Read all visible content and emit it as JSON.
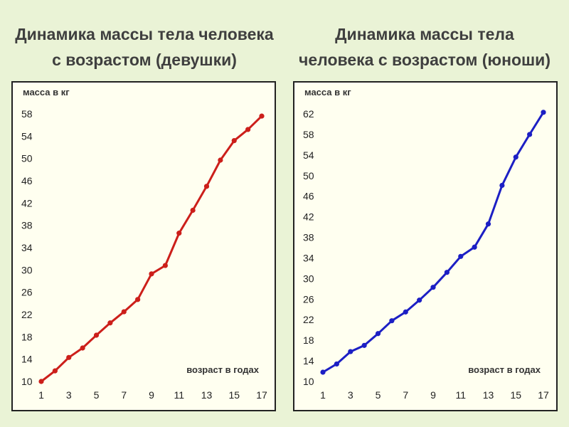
{
  "chart_data": [
    {
      "type": "line",
      "title_lines": [
        "Динамика массы тела человека",
        "с возрастом (девушки)"
      ],
      "ylabel": "масса в кг",
      "xlabel": "возраст в годах",
      "color": "#cc1f1a",
      "ylim": [
        10,
        58
      ],
      "xlim": [
        1,
        17
      ],
      "yticks": [
        "10",
        "14",
        "18",
        "22",
        "26",
        "30",
        "34",
        "38",
        "42",
        "46",
        "50",
        "54",
        "58"
      ],
      "xticks": [
        "1",
        "3",
        "5",
        "7",
        "9",
        "11",
        "13",
        "15",
        "17"
      ],
      "x": [
        1,
        2,
        3,
        4,
        5,
        6,
        7,
        8,
        9,
        10,
        11,
        12,
        13,
        14,
        15,
        16,
        17
      ],
      "values": [
        10,
        11.9,
        14.3,
        16,
        18.3,
        20.5,
        22.5,
        24.7,
        29.3,
        30.8,
        36.6,
        40.7,
        45,
        49.7,
        53.2,
        55.2,
        57.6
      ]
    },
    {
      "type": "line",
      "title_lines": [
        "Динамика массы тела",
        "человека с возрастом (юноши)"
      ],
      "ylabel": "масса в кг",
      "xlabel": "возраст в годах",
      "color": "#1c1fc4",
      "ylim": [
        10,
        62
      ],
      "xlim": [
        1,
        17
      ],
      "yticks": [
        "10",
        "14",
        "18",
        "22",
        "26",
        "30",
        "34",
        "38",
        "42",
        "46",
        "50",
        "54",
        "58",
        "62"
      ],
      "xticks": [
        "1",
        "3",
        "5",
        "7",
        "9",
        "11",
        "13",
        "15",
        "17"
      ],
      "x": [
        1,
        2,
        3,
        4,
        5,
        6,
        7,
        8,
        9,
        10,
        11,
        12,
        13,
        14,
        15,
        16,
        17
      ],
      "values": [
        11.8,
        13.4,
        15.8,
        17,
        19.3,
        21.8,
        23.5,
        25.8,
        28.3,
        31.2,
        34.3,
        36.1,
        40.6,
        48.1,
        53.6,
        58,
        62.3
      ]
    }
  ]
}
